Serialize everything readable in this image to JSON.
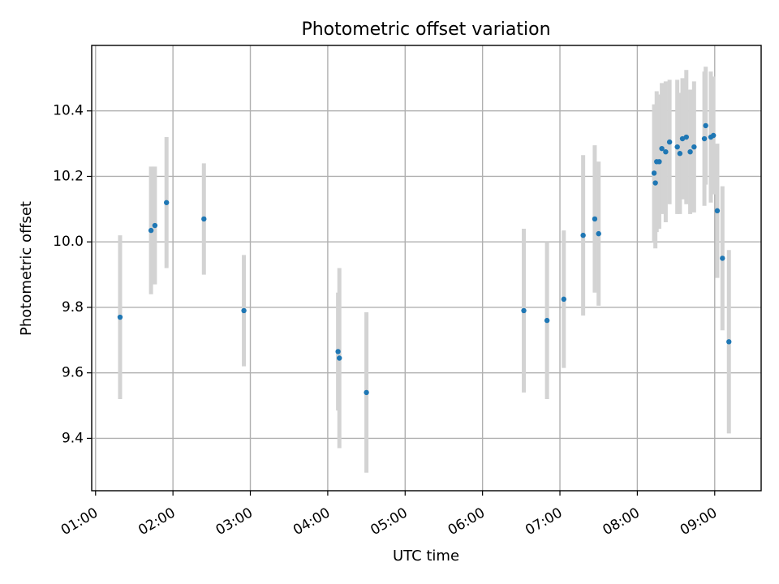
{
  "chart_data": {
    "type": "scatter",
    "title": "Photometric offset variation",
    "xlabel": "UTC time",
    "ylabel": "Photometric offset",
    "x_tick_labels": [
      "01:00",
      "02:00",
      "03:00",
      "04:00",
      "05:00",
      "06:00",
      "07:00",
      "08:00",
      "09:00"
    ],
    "x_ticks": [
      "01:00",
      "02:00",
      "03:00",
      "04:00",
      "05:00",
      "06:00",
      "07:00",
      "08:00",
      "09:00"
    ],
    "y_ticks": [
      9.4,
      9.6,
      9.8,
      10.0,
      10.2,
      10.4
    ],
    "y_tick_labels": [
      "9.4",
      "9.6",
      "9.8",
      "10.0",
      "10.2",
      "10.4"
    ],
    "xlim": [
      "00:57",
      "09:36"
    ],
    "ylim": [
      9.24,
      10.6
    ],
    "grid": true,
    "marker_color": "#1f77b4",
    "errorbar_color": "#d3d3d3",
    "points": [
      {
        "x": "01:19",
        "y": 9.77,
        "yerr": 0.25
      },
      {
        "x": "01:43",
        "y": 10.035,
        "yerr": 0.195
      },
      {
        "x": "01:46",
        "y": 10.05,
        "yerr": 0.18
      },
      {
        "x": "01:55",
        "y": 10.12,
        "yerr": 0.2
      },
      {
        "x": "02:24",
        "y": 10.07,
        "yerr": 0.17
      },
      {
        "x": "02:55",
        "y": 9.79,
        "yerr": 0.17
      },
      {
        "x": "04:08",
        "y": 9.665,
        "yerr": 0.18
      },
      {
        "x": "04:09",
        "y": 9.645,
        "yerr": 0.275
      },
      {
        "x": "04:30",
        "y": 9.54,
        "yerr": 0.245
      },
      {
        "x": "06:32",
        "y": 9.79,
        "yerr": 0.25
      },
      {
        "x": "06:50",
        "y": 9.76,
        "yerr": 0.24
      },
      {
        "x": "07:03",
        "y": 9.825,
        "yerr": 0.21
      },
      {
        "x": "07:18",
        "y": 10.02,
        "yerr": 0.245
      },
      {
        "x": "07:27",
        "y": 10.07,
        "yerr": 0.225
      },
      {
        "x": "07:30",
        "y": 10.025,
        "yerr": 0.22
      },
      {
        "x": "08:13",
        "y": 10.21,
        "yerr": 0.21
      },
      {
        "x": "08:14",
        "y": 10.18,
        "yerr": 0.2
      },
      {
        "x": "08:15",
        "y": 10.245,
        "yerr": 0.215
      },
      {
        "x": "08:17",
        "y": 10.245,
        "yerr": 0.205
      },
      {
        "x": "08:19",
        "y": 10.285,
        "yerr": 0.2
      },
      {
        "x": "08:22",
        "y": 10.275,
        "yerr": 0.215
      },
      {
        "x": "08:25",
        "y": 10.305,
        "yerr": 0.19
      },
      {
        "x": "08:31",
        "y": 10.29,
        "yerr": 0.205
      },
      {
        "x": "08:33",
        "y": 10.27,
        "yerr": 0.185
      },
      {
        "x": "08:35",
        "y": 10.315,
        "yerr": 0.185
      },
      {
        "x": "08:38",
        "y": 10.32,
        "yerr": 0.205
      },
      {
        "x": "08:41",
        "y": 10.275,
        "yerr": 0.19
      },
      {
        "x": "08:44",
        "y": 10.29,
        "yerr": 0.2
      },
      {
        "x": "08:52",
        "y": 10.315,
        "yerr": 0.205
      },
      {
        "x": "08:53",
        "y": 10.355,
        "yerr": 0.18
      },
      {
        "x": "08:57",
        "y": 10.32,
        "yerr": 0.2
      },
      {
        "x": "08:59",
        "y": 10.325,
        "yerr": 0.18
      },
      {
        "x": "09:02",
        "y": 10.095,
        "yerr": 0.205
      },
      {
        "x": "09:06",
        "y": 9.95,
        "yerr": 0.22
      },
      {
        "x": "09:11",
        "y": 9.695,
        "yerr": 0.28
      }
    ]
  }
}
